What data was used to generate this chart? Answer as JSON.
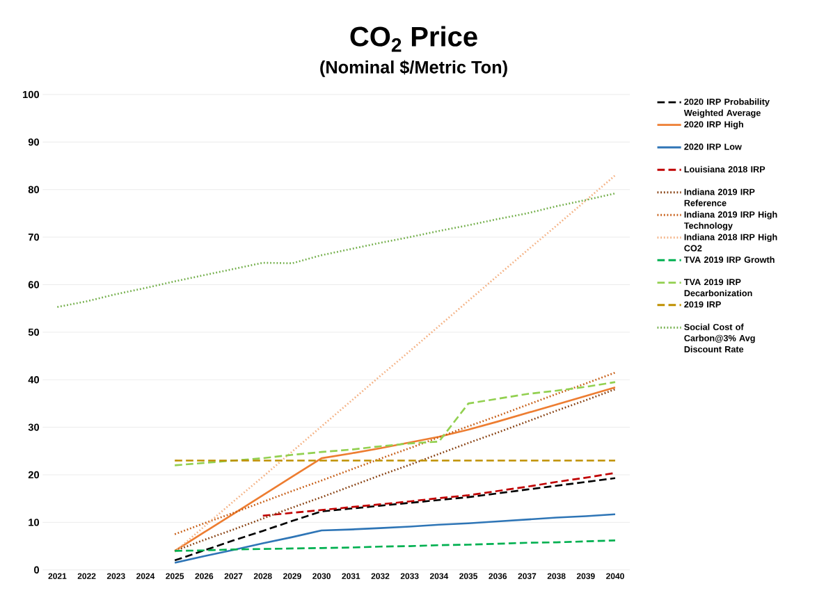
{
  "chart_data": {
    "type": "line",
    "title": "CO$_{2}$ Price",
    "subtitle": "(Nominal $/Metric Ton)",
    "categories": [
      "2021",
      "2022",
      "2023",
      "2024",
      "2025",
      "2026",
      "2027",
      "2028",
      "2029",
      "2030",
      "2031",
      "2032",
      "2033",
      "2034",
      "2035",
      "2036",
      "2037",
      "2038",
      "2039",
      "2040"
    ],
    "ylim": [
      0,
      100
    ],
    "yticks": [
      0,
      10,
      20,
      30,
      40,
      50,
      60,
      70,
      80,
      90,
      100
    ],
    "grid": "y",
    "legend": "right",
    "marker": "none",
    "series": [
      {
        "name": "2020 IRP Probability Weighted Average",
        "color": "#000000",
        "line_style": "dashed",
        "values": [
          null,
          null,
          null,
          null,
          2.0,
          4.1,
          6.2,
          8.2,
          10.3,
          12.3,
          12.9,
          13.5,
          14.1,
          14.7,
          15.3,
          16.1,
          16.9,
          17.7,
          18.5,
          19.3
        ]
      },
      {
        "name": "2020 IRP High",
        "color": "#ed7d31",
        "line_style": "solid",
        "values": [
          null,
          null,
          null,
          null,
          4.0,
          7.9,
          11.8,
          15.7,
          19.6,
          23.5,
          24.5,
          25.6,
          26.8,
          28.0,
          29.5,
          31.2,
          33.0,
          34.8,
          36.6,
          38.4
        ]
      },
      {
        "name": "2020 IRP Low",
        "color": "#2e75b6",
        "line_style": "solid",
        "values": [
          null,
          null,
          null,
          null,
          1.5,
          2.9,
          4.2,
          5.6,
          6.9,
          8.3,
          8.5,
          8.8,
          9.1,
          9.5,
          9.8,
          10.2,
          10.6,
          11.0,
          11.3,
          11.7
        ]
      },
      {
        "name": "Louisiana 2018 IRP",
        "color": "#c00000",
        "line_style": "dashed",
        "values": [
          null,
          null,
          null,
          null,
          null,
          null,
          null,
          11.4,
          12.0,
          12.6,
          13.2,
          13.8,
          14.4,
          15.1,
          15.7,
          16.6,
          17.5,
          18.5,
          19.4,
          20.4
        ]
      },
      {
        "name": "Indiana 2019 IRP Reference",
        "color": "#843c0c",
        "line_style": "dotted",
        "values": [
          null,
          null,
          null,
          null,
          4.0,
          6.3,
          8.5,
          10.8,
          13.1,
          15.3,
          17.6,
          19.9,
          22.1,
          24.4,
          26.7,
          28.9,
          31.2,
          33.5,
          35.7,
          38.0
        ]
      },
      {
        "name": "Indiana 2019 IRP High Technology",
        "color": "#c55a11",
        "line_style": "dotted",
        "values": [
          null,
          null,
          null,
          null,
          7.5,
          9.8,
          12.0,
          14.3,
          16.6,
          18.8,
          21.1,
          23.4,
          25.6,
          27.9,
          30.2,
          32.4,
          34.7,
          37.0,
          39.2,
          41.5
        ]
      },
      {
        "name": "Indiana 2018 IRP High CO2",
        "color": "#f4b183",
        "line_style": "dotted",
        "values": [
          null,
          null,
          null,
          null,
          3.8,
          9.1,
          14.4,
          19.6,
          24.9,
          30.2,
          35.5,
          40.8,
          46.0,
          51.3,
          56.6,
          61.9,
          67.2,
          72.4,
          77.7,
          83.0
        ]
      },
      {
        "name": "TVA 2019 IRP Growth",
        "color": "#00b050",
        "line_style": "dashed",
        "values": [
          null,
          null,
          null,
          null,
          4.0,
          4.1,
          4.3,
          4.4,
          4.5,
          4.6,
          4.7,
          4.9,
          5.0,
          5.2,
          5.3,
          5.5,
          5.7,
          5.8,
          6.0,
          6.2
        ]
      },
      {
        "name": "TVA 2019 IRP Decarbonization",
        "color": "#92d050",
        "line_style": "dashed",
        "values": [
          null,
          null,
          null,
          null,
          22.0,
          22.5,
          23.0,
          23.5,
          24.2,
          24.8,
          25.3,
          26.0,
          26.6,
          27.0,
          35.0,
          36.0,
          37.0,
          37.7,
          38.5,
          39.5
        ]
      },
      {
        "name": "2019 IRP",
        "color": "#bf9000",
        "line_style": "dashed",
        "values": [
          null,
          null,
          null,
          null,
          23,
          23,
          23,
          23,
          23,
          23,
          23,
          23,
          23,
          23,
          23,
          23,
          23,
          23,
          23,
          23
        ]
      },
      {
        "name": "Social Cost of Carbon@3% Avg Discount Rate",
        "color": "#70ad47",
        "line_style": "dotted",
        "values": [
          55.3,
          56.5,
          58.0,
          59.3,
          60.7,
          62.0,
          63.3,
          64.6,
          64.5,
          66.2,
          67.5,
          68.8,
          70.0,
          71.3,
          72.5,
          73.8,
          75.0,
          76.5,
          77.8,
          79.2
        ]
      }
    ]
  }
}
